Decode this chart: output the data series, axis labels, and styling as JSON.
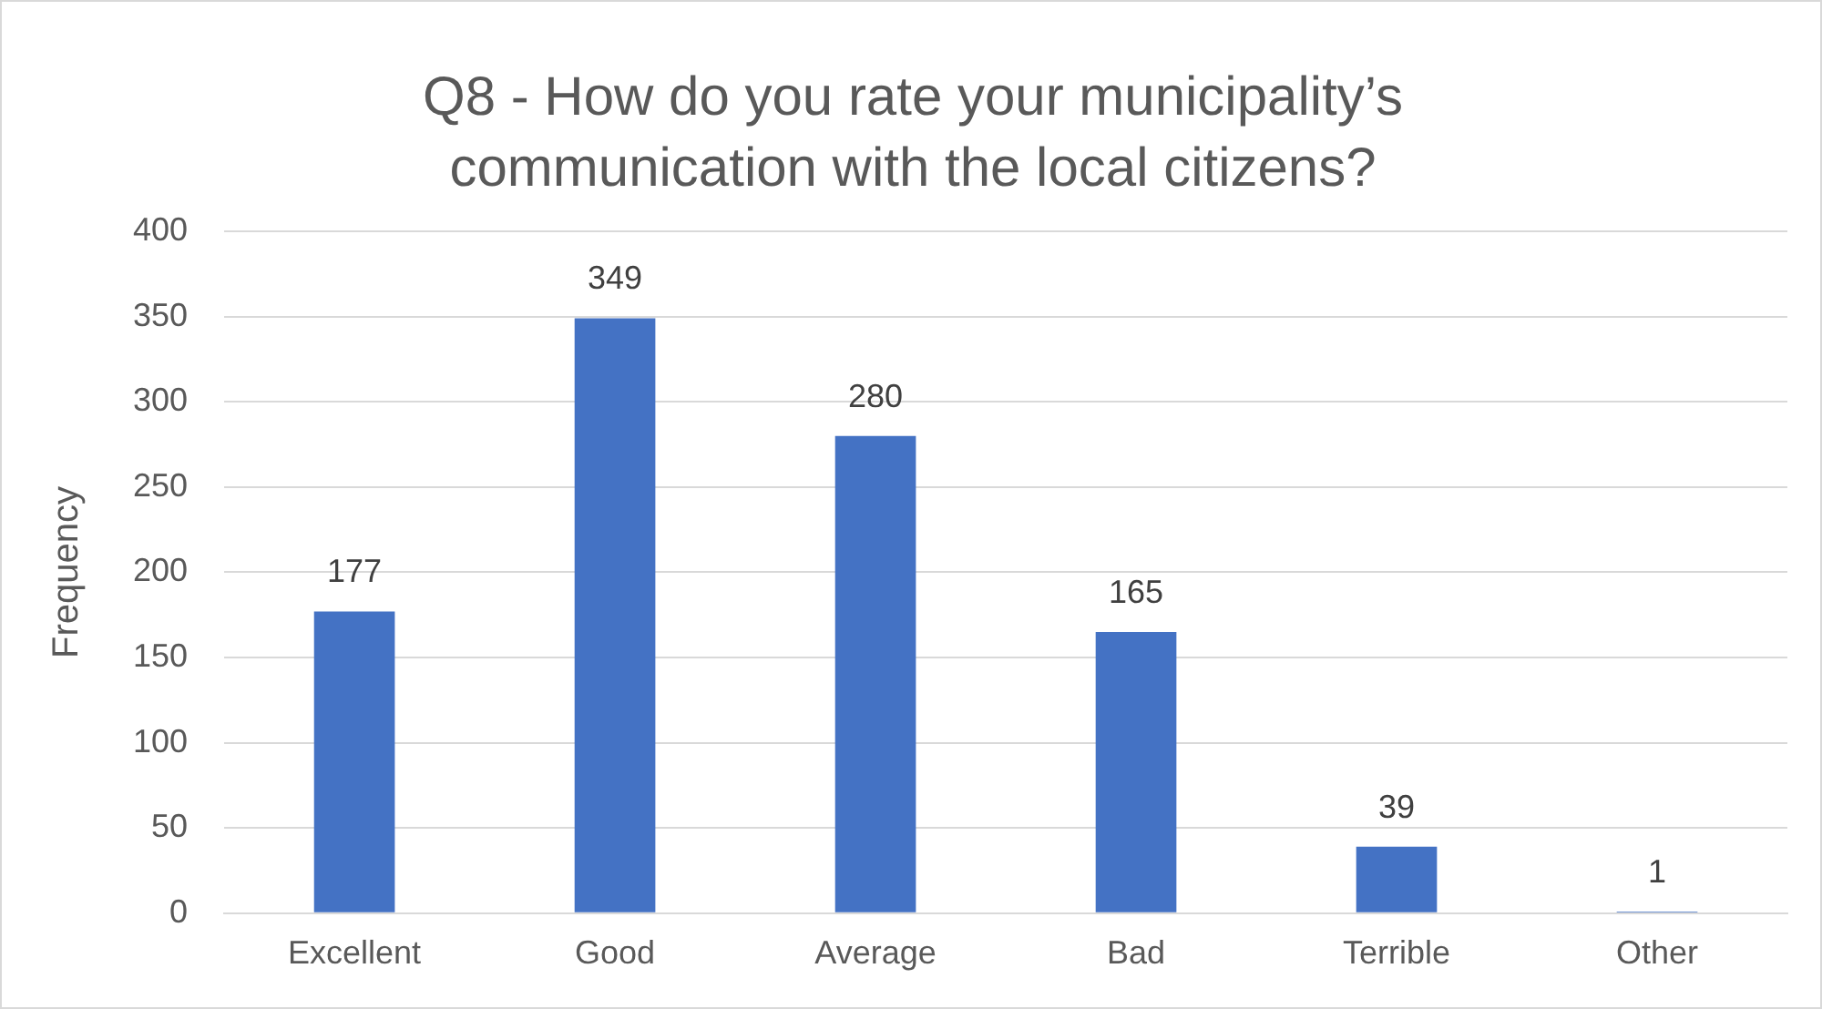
{
  "chart_data": {
    "type": "bar",
    "title": "Q8 - How do you rate your municipality’s communication with the local citizens?",
    "ylabel": "Frequency",
    "categories": [
      "Excellent",
      "Good",
      "Average",
      "Bad",
      "Terrible",
      "Other"
    ],
    "values": [
      177,
      349,
      280,
      165,
      39,
      1
    ],
    "color": "#4472c4",
    "ylim": [
      0,
      400
    ],
    "yticks": [
      0,
      50,
      100,
      150,
      200,
      250,
      300,
      350,
      400
    ],
    "grid": "y",
    "data_labels": true,
    "legend": false
  }
}
